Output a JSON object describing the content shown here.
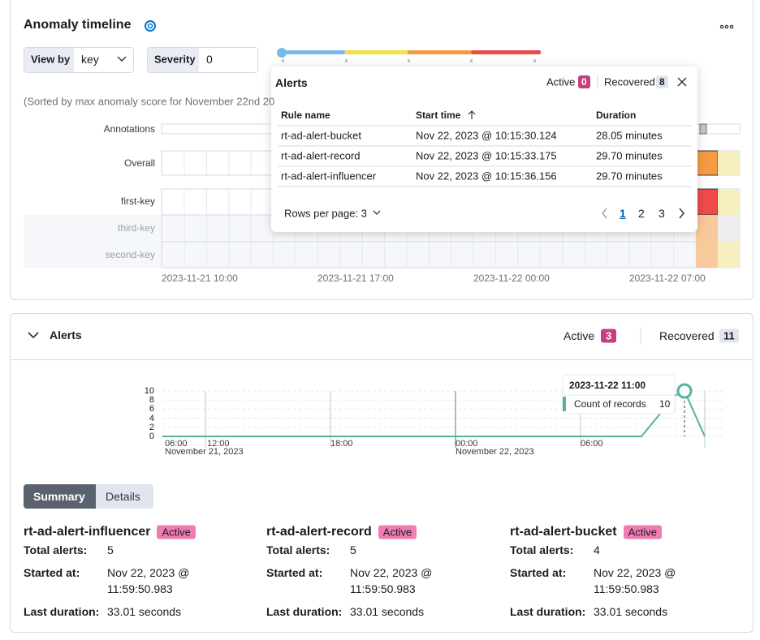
{
  "anomaly_timeline": {
    "title": "Anomaly timeline",
    "view_by_label": "View by",
    "view_by_value": "key",
    "severity_label": "Severity",
    "severity_value": 0,
    "sorted_note": "(Sorted by max anomaly score for November 22nd 20",
    "row_labels": [
      "Annotations",
      "Overall",
      "first-key",
      "third-key",
      "second-key"
    ],
    "x_labels": [
      "2023-11-21 10:00",
      "2023-11-21 17:00",
      "2023-11-22 00:00",
      "2023-11-22 07:00"
    ]
  },
  "alerts_popover": {
    "title": "Alerts",
    "active_label": "Active",
    "active_count": 0,
    "recovered_label": "Recovered",
    "recovered_count": 8,
    "columns": [
      "Rule name",
      "Start time",
      "Duration"
    ],
    "rows": [
      [
        "rt-ad-alert-bucket",
        "Nov 22, 2023 @ 10:15:30.124",
        "28.05 minutes"
      ],
      [
        "rt-ad-alert-record",
        "Nov 22, 2023 @ 10:15:33.175",
        "29.70 minutes"
      ],
      [
        "rt-ad-alert-influencer",
        "Nov 22, 2023 @ 10:15:36.156",
        "29.70 minutes"
      ]
    ],
    "rows_per_page": "Rows per page: 3",
    "pages": [
      "1",
      "2",
      "3"
    ]
  },
  "alerts_panel": {
    "title": "Alerts",
    "active_label": "Active",
    "active_count": 3,
    "recovered_label": "Recovered",
    "recovered_count": 11,
    "chart": {
      "ylim": [
        0,
        10
      ],
      "yticks": [
        0,
        2,
        4,
        6,
        8,
        10
      ],
      "x_labels": [
        "06:00",
        "12:00",
        "18:00",
        "00:00",
        "06:00"
      ],
      "date_labels": [
        "November 21, 2023",
        "November 22, 2023"
      ],
      "tooltip_title": "2023-11-22 11:00",
      "tooltip_label": "Count of records",
      "tooltip_value": 10
    },
    "tabs": [
      "Summary",
      "Details"
    ],
    "summary_labels": {
      "total_alerts": "Total alerts:",
      "started_at": "Started at:",
      "last_duration": "Last duration:"
    },
    "rules": [
      {
        "name": "rt-ad-alert-influencer",
        "status": "Active",
        "total_alerts": 5,
        "started_at": [
          "Nov 22, 2023 @",
          "11:59:50.983"
        ],
        "last_duration": "33.01 seconds"
      },
      {
        "name": "rt-ad-alert-record",
        "status": "Active",
        "total_alerts": 5,
        "started_at": [
          "Nov 22, 2023 @",
          "11:59:50.983"
        ],
        "last_duration": "33.01 seconds"
      },
      {
        "name": "rt-ad-alert-bucket",
        "status": "Active",
        "total_alerts": 4,
        "started_at": [
          "Nov 22, 2023 @",
          "11:59:50.983"
        ],
        "last_duration": "33.01 seconds"
      }
    ]
  }
}
